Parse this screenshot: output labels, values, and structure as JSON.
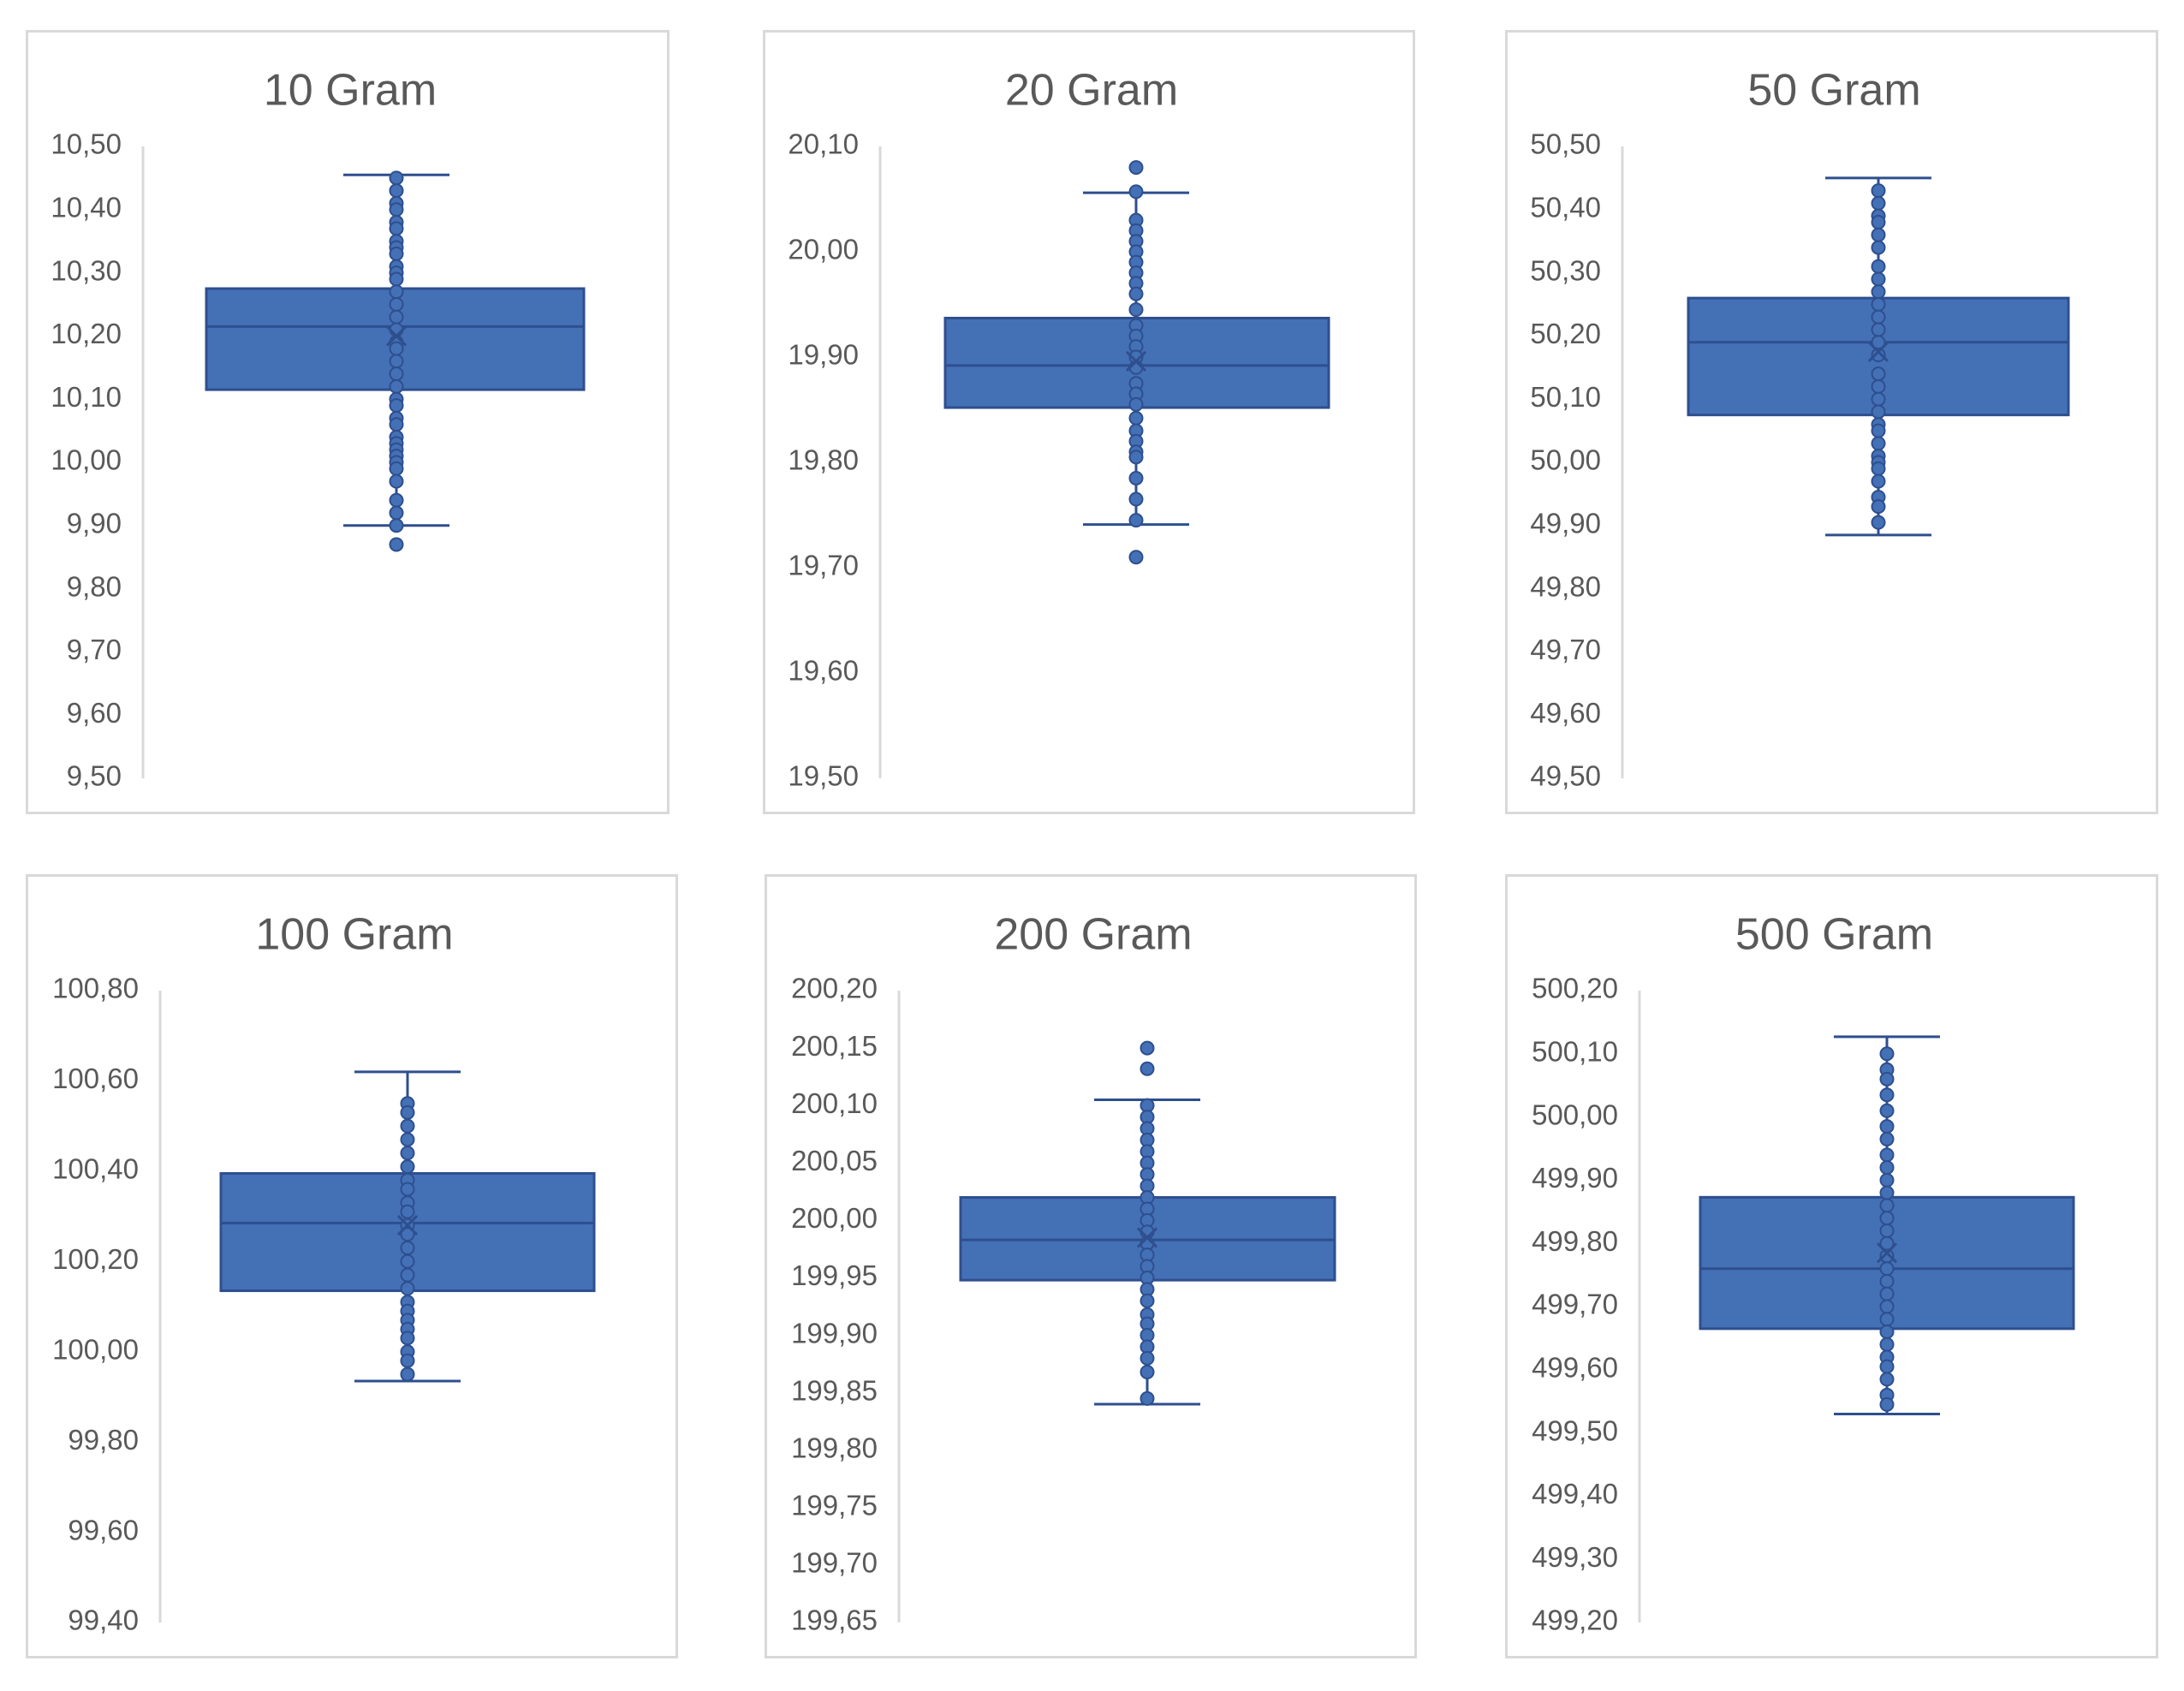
{
  "style": {
    "box_fill": "#4470b6",
    "box_stroke": "#2e4f8e",
    "axis_color": "#d9d9d9",
    "text_color": "#595959",
    "border_color": "#d9d9d9"
  },
  "chart_data": [
    {
      "type": "box",
      "title": "10 Gram",
      "ylim": [
        9.5,
        10.5
      ],
      "yticks": [
        "10,50",
        "10,40",
        "10,30",
        "10,20",
        "10,10",
        "10,00",
        "9,90",
        "9,80",
        "9,70",
        "9,60",
        "9,50"
      ],
      "min": 9.9,
      "q1": 10.115,
      "median": 10.215,
      "mean": 10.2,
      "q3": 10.275,
      "max": 10.455,
      "points": [
        10.45,
        10.43,
        10.41,
        10.4,
        10.38,
        10.37,
        10.35,
        10.34,
        10.33,
        10.31,
        10.3,
        10.29,
        10.27,
        10.25,
        10.23,
        10.21,
        10.19,
        10.18,
        10.16,
        10.14,
        10.12,
        10.1,
        10.09,
        10.07,
        10.06,
        10.04,
        10.03,
        10.02,
        10.01,
        10.0,
        9.99,
        9.97,
        9.94,
        9.92,
        9.9,
        9.87
      ]
    },
    {
      "type": "box",
      "title": "20 Gram",
      "ylim": [
        19.5,
        20.1
      ],
      "yticks": [
        "20,10",
        "20,00",
        "19,90",
        "19,80",
        "19,70",
        "19,60",
        "19,50"
      ],
      "min": 19.741,
      "q1": 19.852,
      "median": 19.892,
      "mean": 19.896,
      "q3": 19.937,
      "max": 20.056,
      "points": [
        20.08,
        20.057,
        20.03,
        20.02,
        20.01,
        20.0,
        19.99,
        19.98,
        19.97,
        19.96,
        19.945,
        19.93,
        19.92,
        19.91,
        19.9,
        19.89,
        19.875,
        19.865,
        19.855,
        19.842,
        19.83,
        19.82,
        19.81,
        19.805,
        19.785,
        19.765,
        19.745,
        19.71
      ]
    },
    {
      "type": "box",
      "title": "50 Gram",
      "ylim": [
        49.5,
        50.5
      ],
      "yticks": [
        "50,50",
        "50,40",
        "50,30",
        "50,20",
        "50,10",
        "50,00",
        "49,90",
        "49,80",
        "49,70",
        "49,60",
        "49,50"
      ],
      "min": 49.885,
      "q1": 50.075,
      "median": 50.19,
      "mean": 50.175,
      "q3": 50.26,
      "max": 50.45,
      "points": [
        50.43,
        50.41,
        50.39,
        50.38,
        50.36,
        50.34,
        50.31,
        50.29,
        50.27,
        50.25,
        50.23,
        50.21,
        50.19,
        50.17,
        50.14,
        50.12,
        50.1,
        50.08,
        50.06,
        50.05,
        50.03,
        50.01,
        50.0,
        49.99,
        49.97,
        49.945,
        49.93,
        49.905
      ]
    },
    {
      "type": "box",
      "title": "100 Gram",
      "ylim": [
        99.4,
        100.8
      ],
      "yticks": [
        "100,80",
        "100,60",
        "100,40",
        "100,20",
        "100,00",
        "99,80",
        "99,60",
        "99,40"
      ],
      "min": 99.935,
      "q1": 100.135,
      "median": 100.285,
      "mean": 100.28,
      "q3": 100.395,
      "max": 100.62,
      "points": [
        100.55,
        100.53,
        100.5,
        100.47,
        100.44,
        100.41,
        100.38,
        100.36,
        100.33,
        100.31,
        100.28,
        100.26,
        100.23,
        100.2,
        100.17,
        100.14,
        100.11,
        100.09,
        100.07,
        100.05,
        100.03,
        100.0,
        99.98,
        99.95
      ]
    },
    {
      "type": "box",
      "title": "200 Gram",
      "ylim": [
        199.65,
        200.2
      ],
      "yticks": [
        "200,20",
        "200,15",
        "200,10",
        "200,05",
        "200,00",
        "199,95",
        "199,90",
        "199,85",
        "199,80",
        "199,75",
        "199,70",
        "199,65"
      ],
      "min": 199.84,
      "q1": 199.948,
      "median": 199.983,
      "mean": 199.985,
      "q3": 200.02,
      "max": 200.105,
      "points": [
        200.15,
        200.132,
        200.1,
        200.09,
        200.08,
        200.07,
        200.06,
        200.05,
        200.04,
        200.03,
        200.02,
        200.01,
        200.0,
        199.99,
        199.98,
        199.97,
        199.96,
        199.95,
        199.94,
        199.93,
        199.918,
        199.91,
        199.9,
        199.89,
        199.88,
        199.868,
        199.845
      ]
    },
    {
      "type": "box",
      "title": "500 Gram",
      "ylim": [
        499.2,
        500.2
      ],
      "yticks": [
        "500,20",
        "500,10",
        "500,00",
        "499,90",
        "499,80",
        "499,70",
        "499,60",
        "499,50",
        "499,40",
        "499,30",
        "499,20"
      ],
      "min": 499.53,
      "q1": 499.665,
      "median": 499.76,
      "mean": 499.785,
      "q3": 499.873,
      "max": 500.127,
      "points": [
        500.1,
        500.075,
        500.06,
        500.035,
        500.01,
        499.985,
        499.965,
        499.94,
        499.92,
        499.9,
        499.88,
        499.86,
        499.84,
        499.82,
        499.8,
        499.78,
        499.76,
        499.74,
        499.72,
        499.7,
        499.68,
        499.66,
        499.64,
        499.62,
        499.605,
        499.585,
        499.56,
        499.545
      ]
    }
  ]
}
